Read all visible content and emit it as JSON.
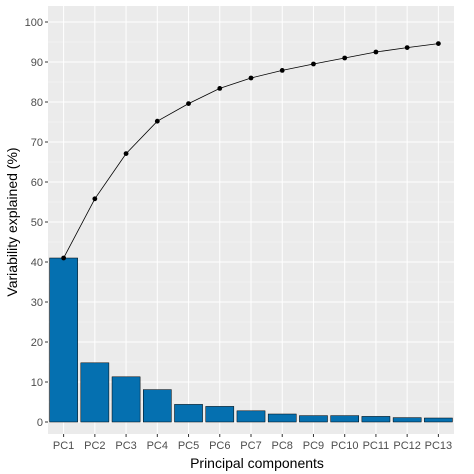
{
  "chart_data": {
    "type": "bar",
    "xlabel": "Principal components",
    "ylabel": "Variability explained (%)",
    "categories": [
      "PC1",
      "PC2",
      "PC3",
      "PC4",
      "PC5",
      "PC6",
      "PC7",
      "PC8",
      "PC9",
      "PC10",
      "PC11",
      "PC12",
      "PC13"
    ],
    "series": [
      {
        "type": "bar",
        "values": [
          41.0,
          14.8,
          11.3,
          8.1,
          4.4,
          3.9,
          2.8,
          2.0,
          1.6,
          1.6,
          1.4,
          1.1,
          1.0
        ]
      },
      {
        "type": "line",
        "values": [
          41.0,
          55.8,
          67.1,
          75.2,
          79.6,
          83.4,
          86.0,
          87.9,
          89.5,
          91.0,
          92.5,
          93.6,
          94.6
        ]
      }
    ],
    "ylim": [
      -3,
      104
    ],
    "yticks": [
      0,
      10,
      20,
      30,
      40,
      50,
      60,
      70,
      80,
      90,
      100
    ],
    "grid": true,
    "legend": "none",
    "colors": {
      "panel_background": "#ebebeb",
      "grid_major": "#ffffff",
      "grid_minor": "#f5f5f5",
      "bar_fill": "#0570b0",
      "bar_outline": "#000000",
      "line": "#000000",
      "point": "#000000"
    }
  }
}
